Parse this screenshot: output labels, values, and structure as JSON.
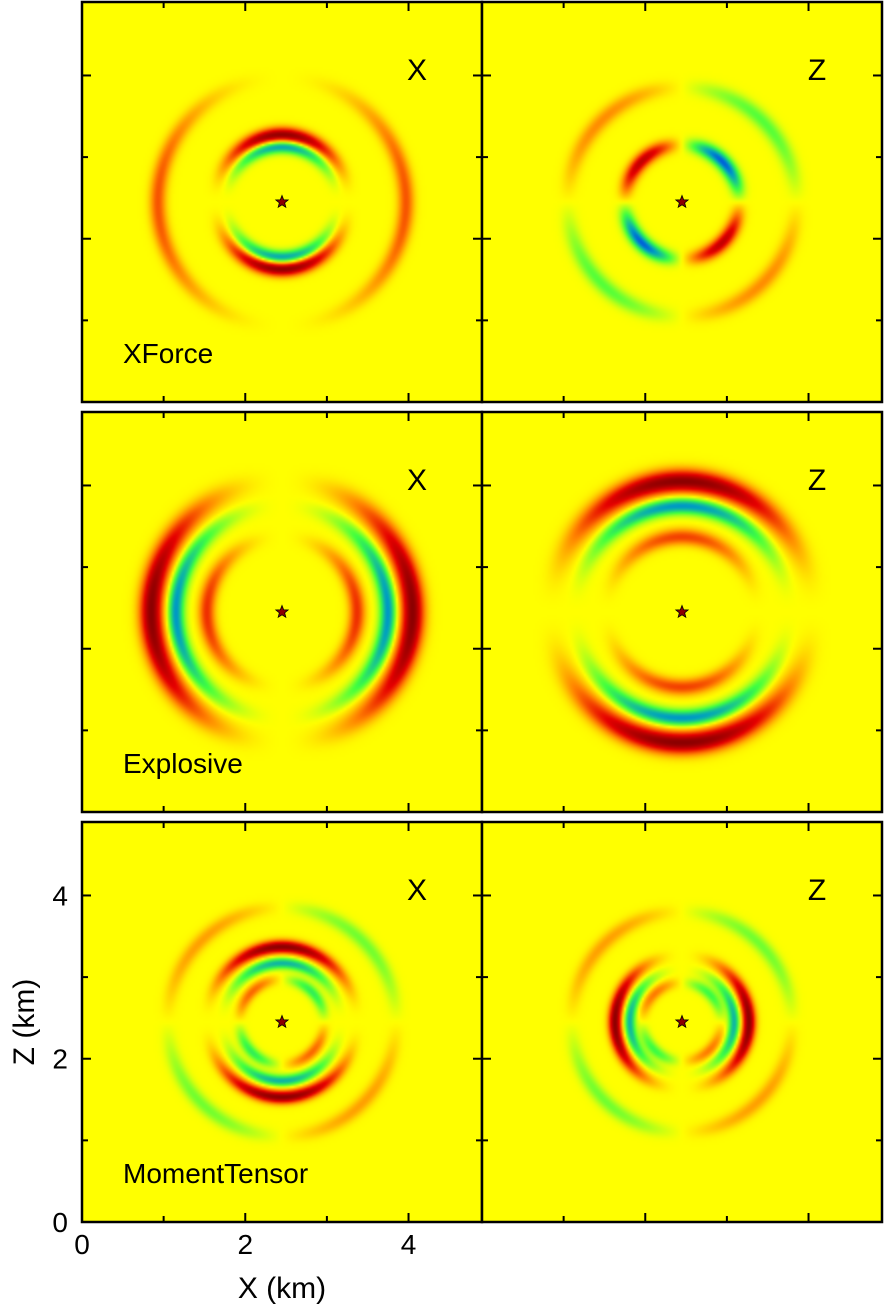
{
  "figure": {
    "xlabel": "X (km)",
    "ylabel": "Z (km)",
    "background_color": "#ffff00",
    "colormap": [
      "#8b0000",
      "#e60000",
      "#ff8000",
      "#ffff00",
      "#40ff40",
      "#00a0c0",
      "#0000ff"
    ]
  },
  "chart_data": [
    {
      "type": "heatmap",
      "row": "XForce",
      "component": "X",
      "label": "XForce",
      "component_label": "X",
      "xlim": [
        0,
        4.9
      ],
      "ylim": [
        0,
        4.9
      ],
      "source": [
        2.45,
        2.45
      ],
      "rings": [
        {
          "r": 0.82,
          "w": 0.09,
          "amp": 1.0,
          "pattern": "cos2"
        },
        {
          "r": 0.68,
          "w": 0.08,
          "amp": -0.7,
          "pattern": "cos2"
        },
        {
          "r": 1.52,
          "w": 0.1,
          "amp": 0.45,
          "pattern": "sin2"
        }
      ]
    },
    {
      "type": "heatmap",
      "row": "XForce",
      "component": "Z",
      "label": "",
      "component_label": "Z",
      "xlim": [
        0,
        4.9
      ],
      "ylim": [
        0,
        4.9
      ],
      "source": [
        2.45,
        2.45
      ],
      "rings": [
        {
          "r": 0.7,
          "w": 0.09,
          "amp": 0.8,
          "pattern": "sin2theta"
        },
        {
          "r": 1.4,
          "w": 0.1,
          "amp": 0.3,
          "pattern": "sin2theta"
        }
      ]
    },
    {
      "type": "heatmap",
      "row": "Explosive",
      "component": "X",
      "label": "Explosive",
      "component_label": "X",
      "xlim": [
        0,
        4.9
      ],
      "ylim": [
        0,
        4.9
      ],
      "source": [
        2.45,
        2.45
      ],
      "rings": [
        {
          "r": 1.6,
          "w": 0.14,
          "amp": 1.0,
          "pattern": "sin2"
        },
        {
          "r": 1.3,
          "w": 0.1,
          "amp": -0.7,
          "pattern": "sin2"
        },
        {
          "r": 0.92,
          "w": 0.1,
          "amp": 0.55,
          "pattern": "sin2"
        }
      ]
    },
    {
      "type": "heatmap",
      "row": "Explosive",
      "component": "Z",
      "label": "",
      "component_label": "Z",
      "xlim": [
        0,
        4.9
      ],
      "ylim": [
        0,
        4.9
      ],
      "source": [
        2.45,
        2.45
      ],
      "rings": [
        {
          "r": 1.6,
          "w": 0.14,
          "amp": 1.0,
          "pattern": "cos2"
        },
        {
          "r": 1.3,
          "w": 0.1,
          "amp": -0.7,
          "pattern": "cos2"
        },
        {
          "r": 0.92,
          "w": 0.1,
          "amp": 0.5,
          "pattern": "cos2"
        }
      ]
    },
    {
      "type": "heatmap",
      "row": "MomentTensor",
      "component": "X",
      "label": "MomentTensor",
      "component_label": "X",
      "xlim": [
        0,
        4.9
      ],
      "ylim": [
        0,
        4.9
      ],
      "source": [
        2.45,
        2.45
      ],
      "rings": [
        {
          "r": 0.92,
          "w": 0.08,
          "amp": 1.0,
          "pattern": "cos2"
        },
        {
          "r": 0.72,
          "w": 0.07,
          "amp": -0.6,
          "pattern": "cos2"
        },
        {
          "r": 0.52,
          "w": 0.07,
          "amp": 0.4,
          "pattern": "sin2theta"
        },
        {
          "r": 1.4,
          "w": 0.09,
          "amp": 0.25,
          "pattern": "sin2theta"
        }
      ]
    },
    {
      "type": "heatmap",
      "row": "MomentTensor",
      "component": "Z",
      "label": "",
      "component_label": "Z",
      "xlim": [
        0,
        4.9
      ],
      "ylim": [
        0,
        4.9
      ],
      "source": [
        2.45,
        2.45
      ],
      "rings": [
        {
          "r": 0.82,
          "w": 0.08,
          "amp": 1.0,
          "pattern": "sin2"
        },
        {
          "r": 0.64,
          "w": 0.07,
          "amp": -0.6,
          "pattern": "sin2"
        },
        {
          "r": 0.48,
          "w": 0.07,
          "amp": 0.35,
          "pattern": "sin2theta"
        },
        {
          "r": 1.35,
          "w": 0.09,
          "amp": 0.25,
          "pattern": "sin2theta"
        }
      ]
    }
  ],
  "axes": {
    "x_ticks": [
      0,
      2,
      4
    ],
    "x_tick_labels": [
      "0",
      "2",
      "4"
    ],
    "y_ticks": [
      0,
      2,
      4
    ],
    "y_tick_labels": [
      "0",
      "2",
      "4"
    ],
    "minor_step": 1
  }
}
